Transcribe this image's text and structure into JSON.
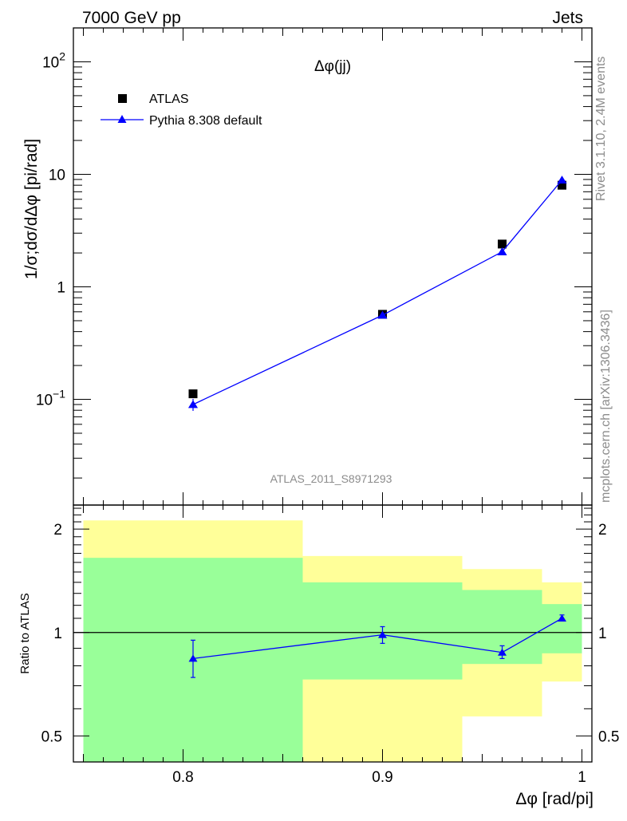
{
  "header": {
    "left": "7000 GeV pp",
    "right": "Jets"
  },
  "side": {
    "rivet": "Rivet 3.1.10,  2.4M events",
    "mcplots": "mcplots.cern.ch [arXiv:1306.3436]"
  },
  "chart_data": [
    {
      "type": "scatter",
      "title": "Δφ(jj)",
      "xlabel": "Δφ [rad/pi]",
      "ylabel": "1/σ;dσ/dΔφ [pi/rad]",
      "yscale": "log",
      "xlim": [
        0.745,
        1.005
      ],
      "ylim": [
        0.0115,
        200
      ],
      "y_ticks": [
        {
          "v": 0.1,
          "base": "10",
          "exp": "−1"
        },
        {
          "v": 1,
          "label": "1"
        },
        {
          "v": 10,
          "label": "10"
        },
        {
          "v": 100,
          "base": "10",
          "exp": "2"
        }
      ],
      "legend": {
        "position": "top-left"
      },
      "watermark": "ATLAS_2011_S8971293",
      "series": [
        {
          "name": "ATLAS",
          "marker": "square",
          "color": "#000000",
          "points": [
            {
              "x": 0.805,
              "y": 0.112
            },
            {
              "x": 0.9,
              "y": 0.57
            },
            {
              "x": 0.96,
              "y": 2.4
            },
            {
              "x": 0.99,
              "y": 8.0
            }
          ]
        },
        {
          "name": "Pythia 8.308 default",
          "marker": "triangle",
          "color": "#0000ff",
          "line": true,
          "points": [
            {
              "x": 0.805,
              "y": 0.09,
              "err": 0.011
            },
            {
              "x": 0.9,
              "y": 0.56,
              "err": 0.02
            },
            {
              "x": 0.96,
              "y": 2.05,
              "err": 0.05
            },
            {
              "x": 0.99,
              "y": 8.9,
              "err": 0.2
            }
          ]
        }
      ]
    },
    {
      "type": "scatter",
      "ylabel": "Ratio to ATLAS",
      "xlabel": "Δφ [rad/pi]",
      "yscale": "log",
      "xlim": [
        0.745,
        1.005
      ],
      "ylim": [
        0.42,
        2.35
      ],
      "y_ticks": [
        0.5,
        1,
        2
      ],
      "x_ticks": [
        0.8,
        0.9,
        1
      ],
      "x_tick_labels": [
        "0.8",
        "0.9",
        "1"
      ],
      "reference_line": 1,
      "bands": [
        {
          "x0": 0.75,
          "x1": 0.86,
          "yellow": [
            0.36,
            2.12
          ],
          "green": [
            0.36,
            1.65
          ]
        },
        {
          "x0": 0.86,
          "x1": 0.94,
          "yellow": [
            0.36,
            1.67
          ],
          "green": [
            0.73,
            1.4
          ]
        },
        {
          "x0": 0.94,
          "x1": 0.98,
          "yellow": [
            0.57,
            1.53
          ],
          "green": [
            0.81,
            1.33
          ]
        },
        {
          "x0": 0.98,
          "x1": 1.0,
          "yellow": [
            0.72,
            1.4
          ],
          "green": [
            0.87,
            1.21
          ]
        }
      ],
      "band_colors": {
        "yellow": "#ffff99",
        "green": "#99ff99"
      },
      "series": [
        {
          "name": "Pythia 8.308 default",
          "marker": "triangle",
          "color": "#0000ff",
          "line": true,
          "points": [
            {
              "x": 0.805,
              "y": 0.84,
              "lo": 0.74,
              "hi": 0.95
            },
            {
              "x": 0.9,
              "y": 0.985,
              "lo": 0.93,
              "hi": 1.04
            },
            {
              "x": 0.96,
              "y": 0.875,
              "lo": 0.84,
              "hi": 0.915
            },
            {
              "x": 0.99,
              "y": 1.1,
              "lo": 1.08,
              "hi": 1.125
            }
          ]
        }
      ]
    }
  ]
}
